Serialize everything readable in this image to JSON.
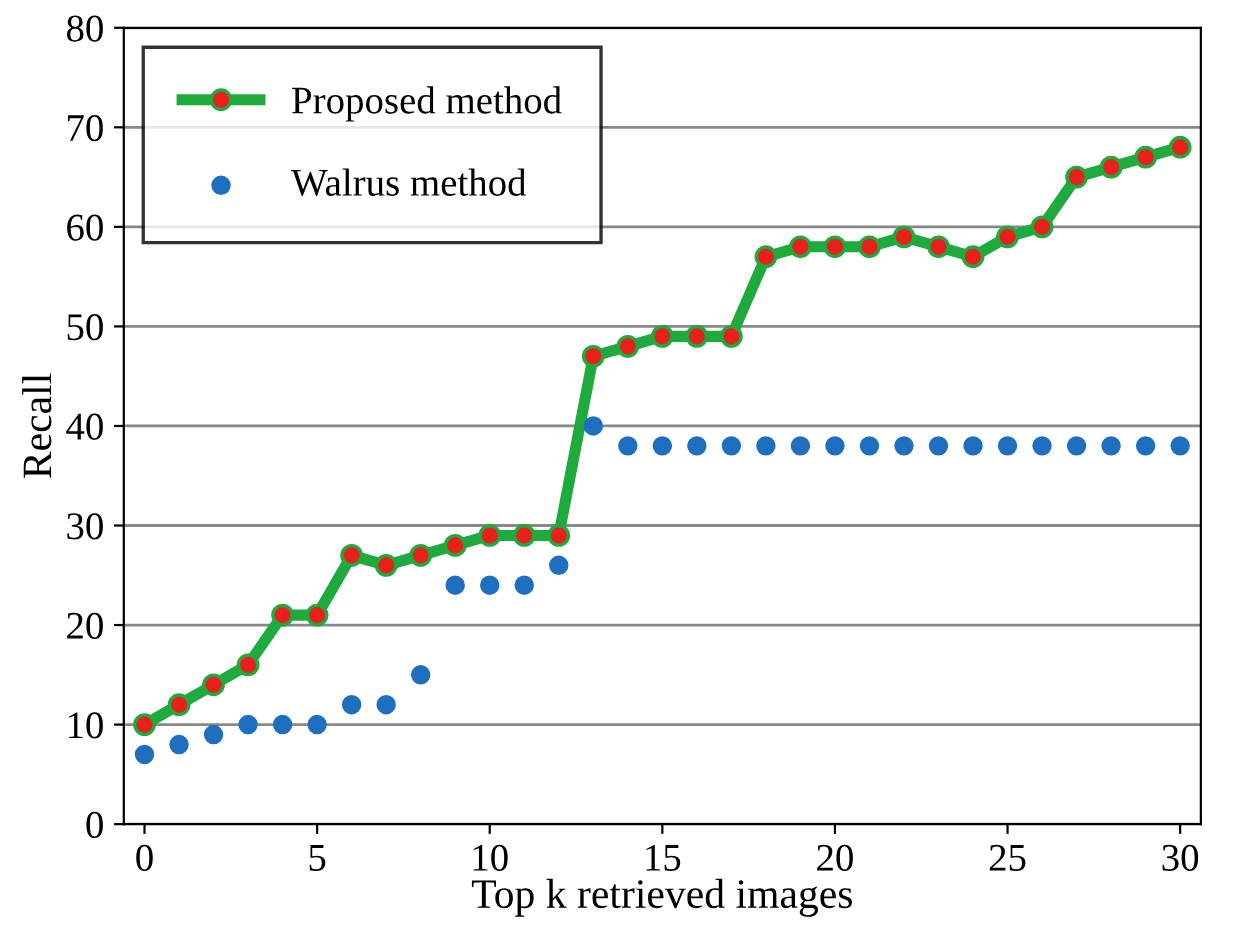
{
  "chart_data": {
    "type": "line",
    "xlabel": "Top k retrieved images",
    "ylabel": "Recall",
    "x": [
      0,
      1,
      2,
      3,
      4,
      5,
      6,
      7,
      8,
      9,
      10,
      11,
      12,
      13,
      14,
      15,
      16,
      17,
      18,
      19,
      20,
      21,
      22,
      23,
      24,
      25,
      26,
      27,
      28,
      29,
      30
    ],
    "series": [
      {
        "name": "Proposed method",
        "color": "#1faa3e",
        "marker": "circle",
        "values": [
          10,
          12,
          14,
          16,
          21,
          21,
          27,
          26,
          27,
          28,
          29,
          29,
          29,
          47,
          48,
          49,
          49,
          49,
          57,
          58,
          58,
          58,
          59,
          58,
          57,
          59,
          60,
          65,
          66,
          67,
          68
        ]
      },
      {
        "name": "Walrus method",
        "type": "scatter",
        "color": "#1f6fc0",
        "marker": "circle",
        "values": [
          7,
          8,
          9,
          10,
          10,
          10,
          12,
          12,
          15,
          24,
          24,
          24,
          26,
          40,
          38,
          38,
          38,
          38,
          38,
          38,
          38,
          38,
          38,
          38,
          38,
          38,
          38,
          38,
          38,
          38,
          38
        ]
      }
    ],
    "xlim": [
      -0.6,
      30.6
    ],
    "ylim": [
      0,
      80
    ],
    "xticks": [
      0,
      5,
      10,
      15,
      20,
      25,
      30
    ],
    "yticks": [
      0,
      10,
      20,
      30,
      40,
      50,
      60,
      70,
      80
    ],
    "grid": "y",
    "legend": "top left"
  }
}
